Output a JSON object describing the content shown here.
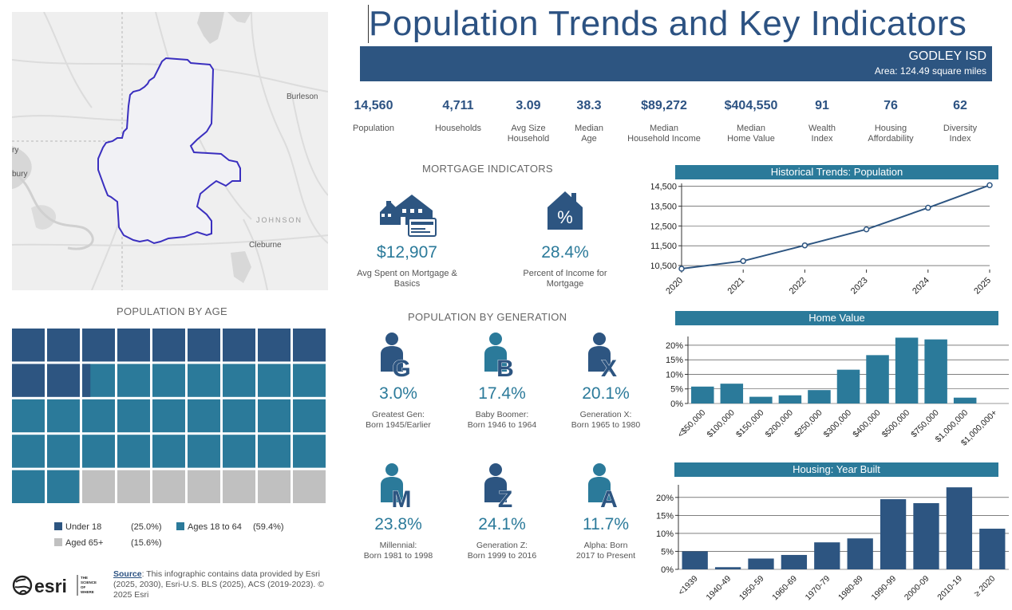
{
  "title": "Population Trends and Key Indicators",
  "area": {
    "name": "GODLEY ISD",
    "area_text": "Area: 124.49 square miles"
  },
  "map": {
    "labels": [
      "Burleson",
      "JOHNSON",
      "Cleburne",
      "bury",
      "ry"
    ]
  },
  "kpis": [
    {
      "value": "14,560",
      "label": "Population"
    },
    {
      "value": "4,711",
      "label": "Households"
    },
    {
      "value": "3.09",
      "label": "Avg Size\nHousehold"
    },
    {
      "value": "38.3",
      "label": "Median\nAge"
    },
    {
      "value": "$89,272",
      "label": "Median\nHousehold Income"
    },
    {
      "value": "$404,550",
      "label": "Median\nHome Value"
    },
    {
      "value": "91",
      "label": "Wealth\nIndex"
    },
    {
      "value": "76",
      "label": "Housing\nAffordability"
    },
    {
      "value": "62",
      "label": "Diversity\nIndex"
    }
  ],
  "mortgage": {
    "title": "MORTGAGE INDICATORS",
    "spent": {
      "value": "$12,907",
      "label": "Avg Spent on Mortgage &\nBasics"
    },
    "pct_income": {
      "value": "28.4%",
      "label": "Percent of Income for\nMortgage"
    },
    "percent_symbol": "%"
  },
  "generation": {
    "title": "POPULATION BY GENERATION",
    "items": [
      {
        "letter": "G",
        "pct": "3.0%",
        "desc": "Greatest Gen:\nBorn 1945/Earlier"
      },
      {
        "letter": "B",
        "pct": "17.4%",
        "desc": "Baby Boomer:\nBorn 1946 to 1964"
      },
      {
        "letter": "X",
        "pct": "20.1%",
        "desc": "Generation X:\nBorn 1965 to 1980"
      },
      {
        "letter": "M",
        "pct": "23.8%",
        "desc": "Millennial:\nBorn 1981 to 1998"
      },
      {
        "letter": "Z",
        "pct": "24.1%",
        "desc": "Generation Z:\nBorn 1999 to 2016"
      },
      {
        "letter": "A",
        "pct": "11.7%",
        "desc": "Alpha:  Born\n2017 to Present"
      }
    ]
  },
  "age": {
    "title": "POPULATION BY AGE",
    "legend": [
      {
        "label": "Under 18",
        "pct": "(25.0%)",
        "color": "#2d5581"
      },
      {
        "label": "Ages 18 to 64",
        "pct": "(59.4%)",
        "color": "#2b7a9a"
      },
      {
        "label": "Aged 65+",
        "pct": "(15.6%)",
        "color": "#c0c0c0"
      }
    ]
  },
  "source": {
    "link": "Source",
    "text": ": This infographic contains data provided by Esri (2025, 2030), Esri-U.S. BLS (2025), ACS (2019-2023). © 2025 Esri",
    "logo": "esri",
    "tagline": "THE\nSCIENCE\nOF\nWHERE"
  },
  "colors": {
    "navy": "#2d5581",
    "teal": "#2b7a9a",
    "grey": "#c0c0c0",
    "title": "#2c5282"
  },
  "chart_data": [
    {
      "type": "waffle",
      "title": "POPULATION BY AGE",
      "categories": [
        "Under 18",
        "Ages 18 to 64",
        "Aged 65+"
      ],
      "values": [
        25.0,
        59.4,
        15.6
      ]
    },
    {
      "type": "line",
      "title": "Historical Trends: Population",
      "x": [
        "2020",
        "2021",
        "2022",
        "2023",
        "2024",
        "2025"
      ],
      "values": [
        10340,
        10730,
        11520,
        12330,
        13420,
        14560
      ],
      "yticks": [
        "10,500",
        "11,500",
        "12,500",
        "13,500",
        "14,500"
      ],
      "ytick_values": [
        10500,
        11500,
        12500,
        13500,
        14500
      ],
      "ylim": [
        10300,
        14650
      ]
    },
    {
      "type": "bar",
      "title": "Home Value",
      "categories": [
        "<$50,000",
        "$100,000",
        "$150,000",
        "$200,000",
        "$250,000",
        "$300,000",
        "$400,000",
        "$500,000",
        "$750,000",
        "$1,000,000",
        "$1,000,000+"
      ],
      "values": [
        5.8,
        6.8,
        2.3,
        2.8,
        4.6,
        11.6,
        16.6,
        22.6,
        22.0,
        2.0,
        0
      ],
      "yticks": [
        "0%",
        "5%",
        "10%",
        "15%",
        "20%"
      ],
      "ytick_values": [
        0,
        5,
        10,
        15,
        20
      ],
      "ylim": [
        0,
        23
      ]
    },
    {
      "type": "bar",
      "title": "Housing: Year Built",
      "categories": [
        "<1939",
        "1940-49",
        "1950-59",
        "1960-69",
        "1970-79",
        "1980-89",
        "1990-99",
        "2000-09",
        "2010-19",
        "≥ 2020"
      ],
      "values": [
        5.0,
        0.6,
        3.0,
        4.0,
        7.5,
        8.6,
        19.5,
        18.4,
        22.8,
        11.3
      ],
      "yticks": [
        "0%",
        "5%",
        "10%",
        "15%",
        "20%"
      ],
      "ytick_values": [
        0,
        5,
        10,
        15,
        20
      ],
      "ylim": [
        0,
        23.5
      ]
    }
  ]
}
